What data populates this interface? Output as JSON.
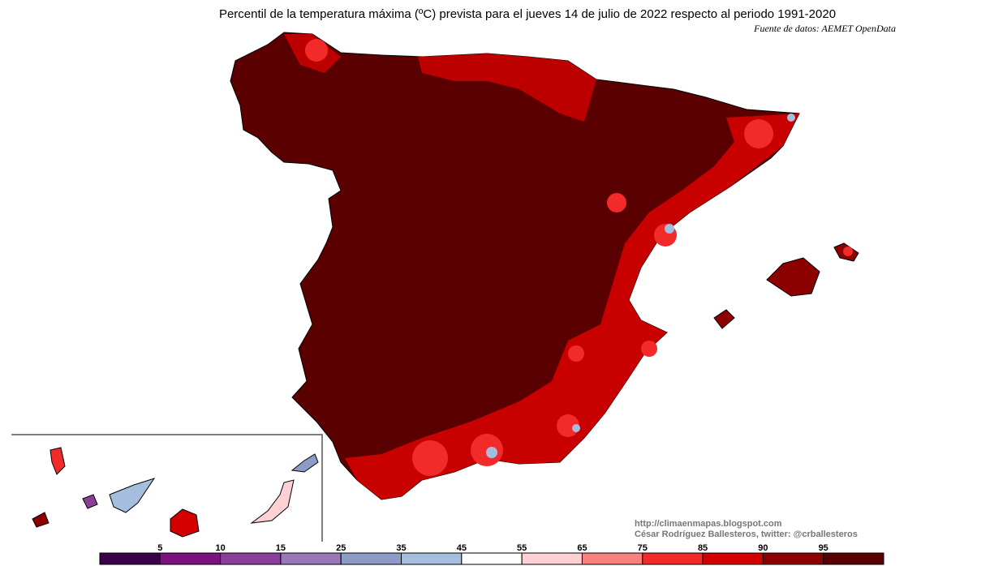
{
  "header": {
    "title": "Percentil de la temperatura máxima (ºC) prevista para el jueves 14 de julio de 2022 respecto al periodo 1991-2020",
    "source": "Fuente de datos: AEMET OpenData"
  },
  "credits": {
    "url": "http://climaenmapas.blogspot.com",
    "author": "César Rodríguez Ballesteros, twitter: @crballesteros"
  },
  "colorbar": {
    "labels": [
      5,
      10,
      15,
      25,
      35,
      45,
      55,
      65,
      75,
      85,
      90,
      95
    ],
    "colors": [
      "#3c0048",
      "#7a1380",
      "#8a409a",
      "#9a78b8",
      "#8c9cc6",
      "#a6bede",
      "#ffffff",
      "#fdd0d4",
      "#fb8080",
      "#f22a2a",
      "#d40000",
      "#8c0000",
      "#5a0000"
    ]
  }
}
